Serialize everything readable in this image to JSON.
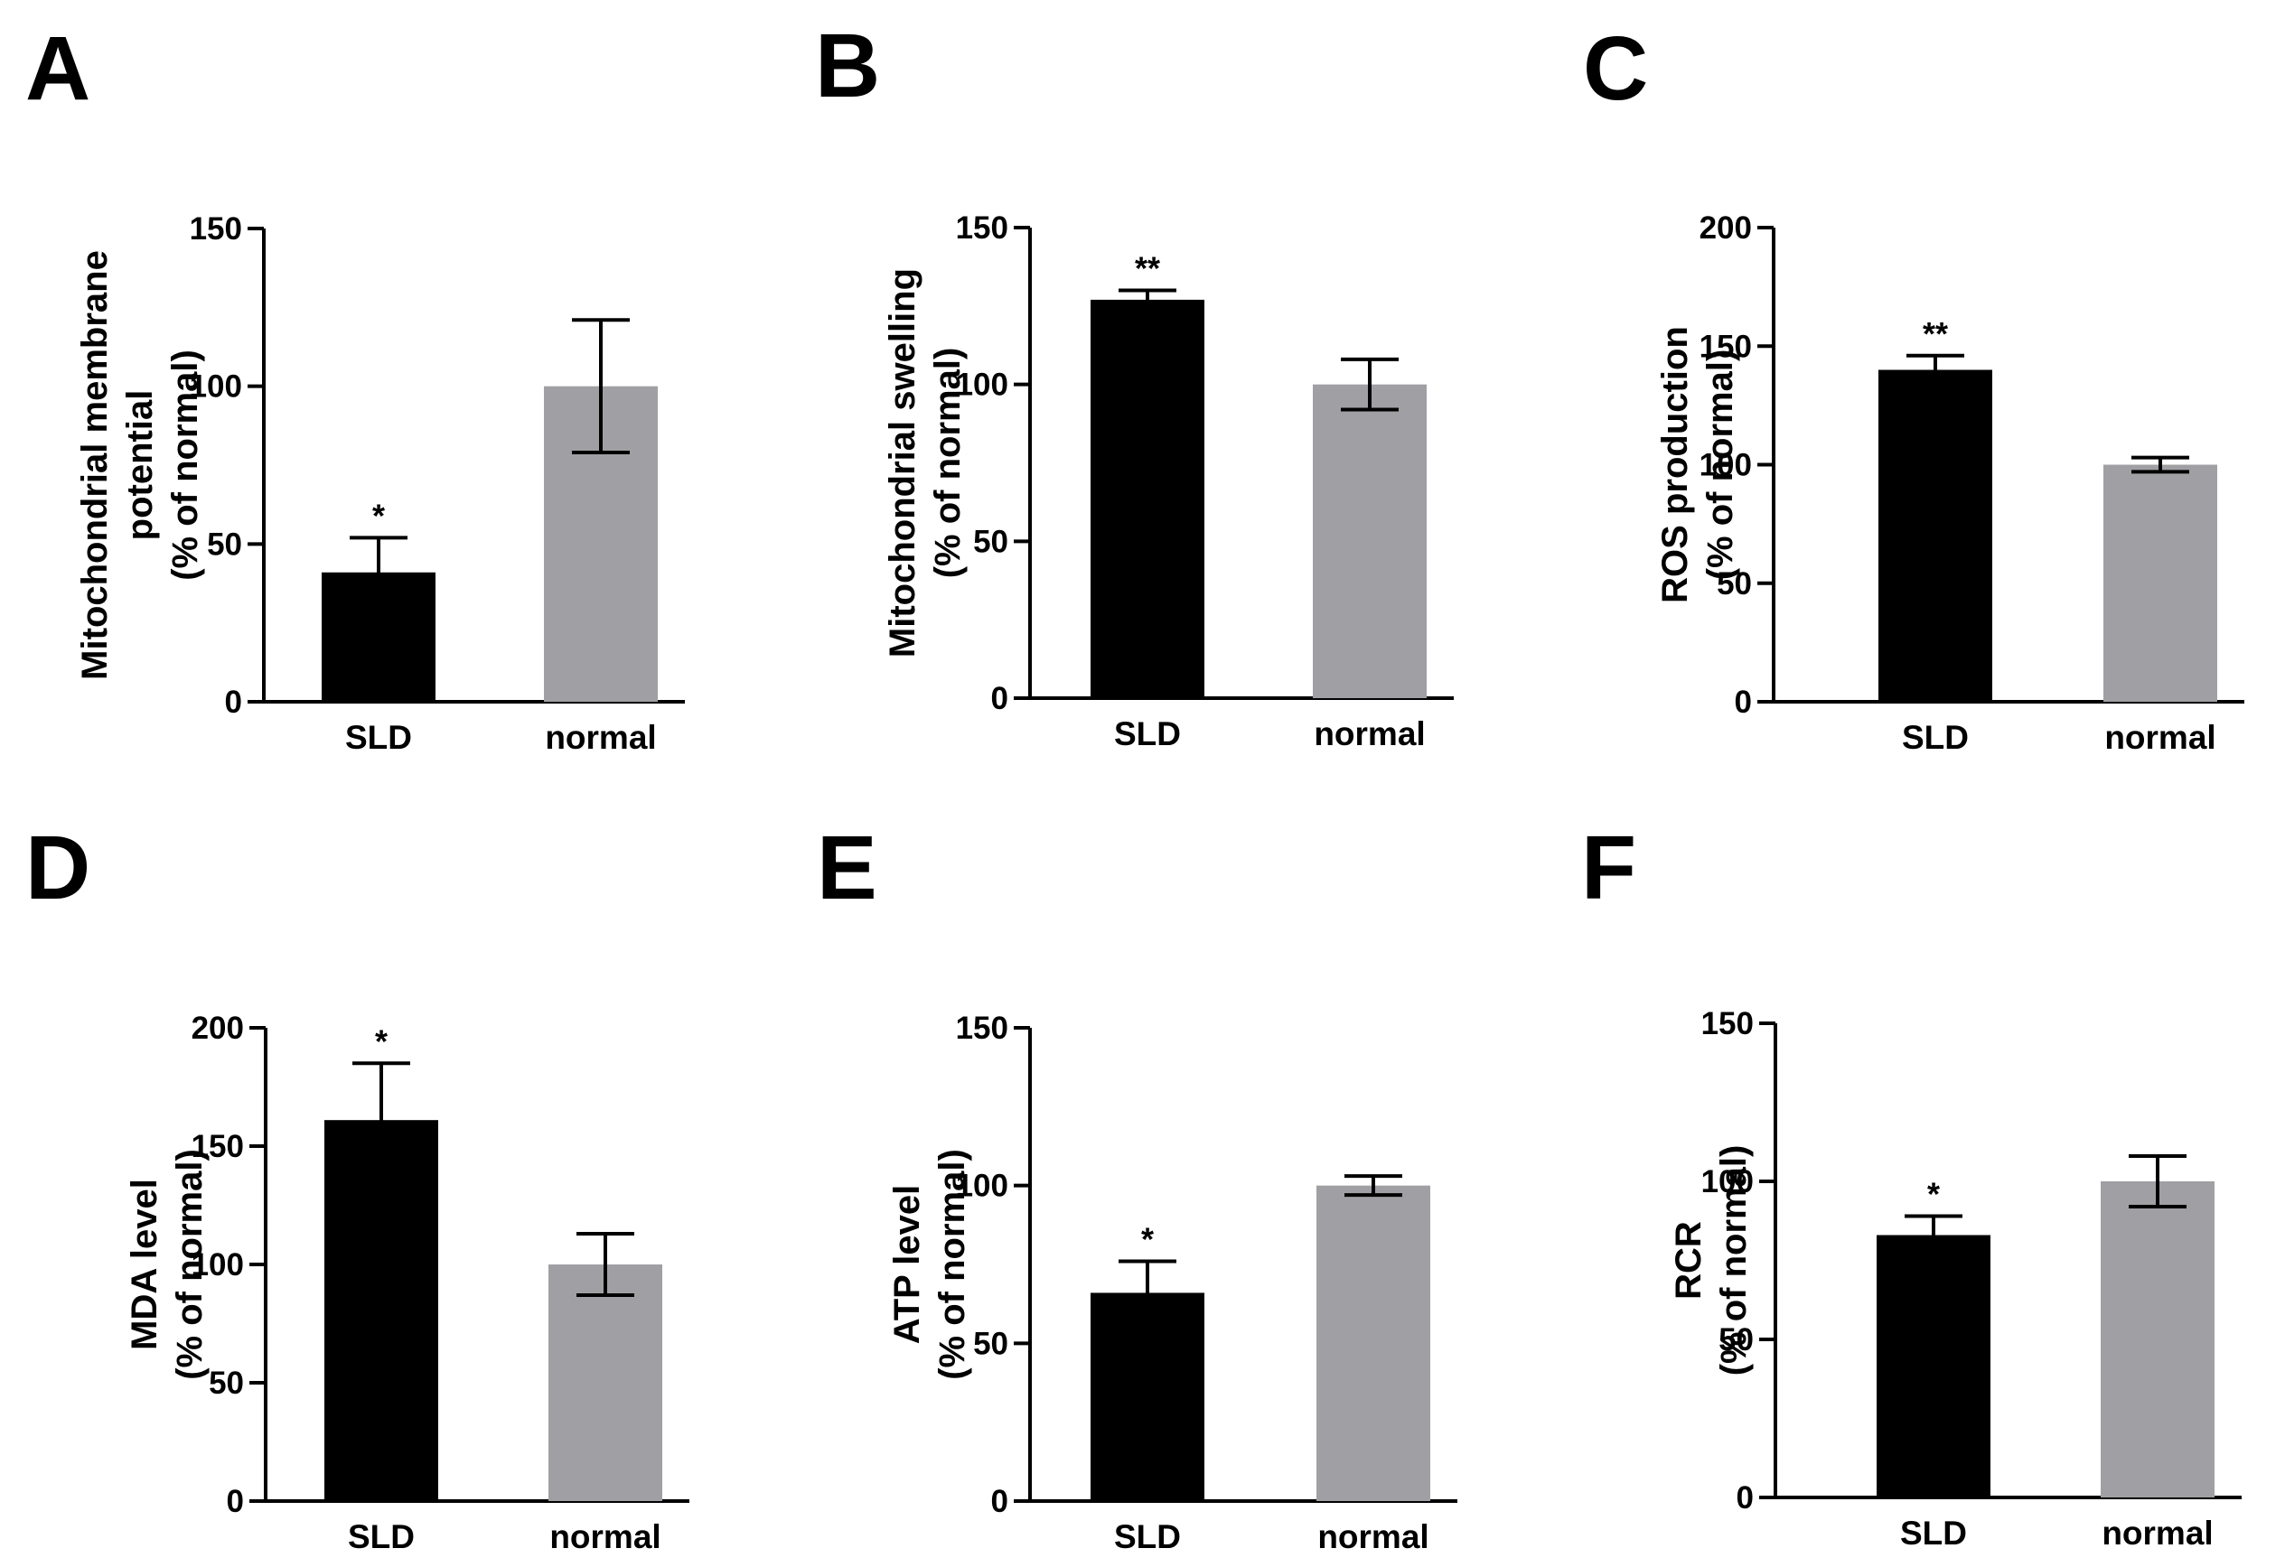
{
  "figure": {
    "colors": {
      "SLD": "#000000",
      "normal": "#a0a0a4",
      "axis": "#000000"
    }
  },
  "chart_data": [
    {
      "panel": "A",
      "type": "bar",
      "categories": [
        "SLD",
        "normal"
      ],
      "values": [
        41,
        100
      ],
      "errors": [
        11,
        21
      ],
      "significance": [
        "*",
        ""
      ],
      "ylabel_lines": [
        "Mitochondrial membrane",
        "potential",
        "(% of normal)"
      ],
      "ylim": [
        0,
        150
      ],
      "yticks": [
        0,
        50,
        100,
        150
      ],
      "ytick_labels": [
        "0",
        "50",
        "100",
        "150"
      ]
    },
    {
      "panel": "B",
      "type": "bar",
      "categories": [
        "SLD",
        "normal"
      ],
      "values": [
        127,
        100
      ],
      "errors": [
        3,
        8
      ],
      "significance": [
        "**",
        ""
      ],
      "ylabel_lines": [
        "Mitochondrial swelling",
        "(% of normal)"
      ],
      "ylim": [
        0,
        150
      ],
      "yticks": [
        0,
        50,
        100,
        150
      ],
      "ytick_labels": [
        "0",
        "50",
        "100",
        "150"
      ]
    },
    {
      "panel": "C",
      "type": "bar",
      "categories": [
        "SLD",
        "normal"
      ],
      "values": [
        140,
        100
      ],
      "errors": [
        6,
        3
      ],
      "significance": [
        "**",
        ""
      ],
      "ylabel_lines": [
        "ROS production",
        "(% of normal)"
      ],
      "ylim": [
        0,
        200
      ],
      "yticks": [
        0,
        50,
        100,
        150,
        200
      ],
      "ytick_labels": [
        "0",
        "50",
        "100",
        "150",
        "200"
      ]
    },
    {
      "panel": "D",
      "type": "bar",
      "categories": [
        "SLD",
        "normal"
      ],
      "values": [
        161,
        100
      ],
      "errors": [
        24,
        13
      ],
      "significance": [
        "*",
        ""
      ],
      "ylabel_lines": [
        "MDA level",
        "(% of normal)"
      ],
      "ylim": [
        0,
        200
      ],
      "yticks": [
        0,
        50,
        100,
        150,
        200
      ],
      "ytick_labels": [
        "0",
        "50",
        "100",
        "150",
        "200"
      ]
    },
    {
      "panel": "E",
      "type": "bar",
      "categories": [
        "SLD",
        "normal"
      ],
      "values": [
        66,
        100
      ],
      "errors": [
        10,
        3
      ],
      "significance": [
        "*",
        ""
      ],
      "ylabel_lines": [
        "ATP level",
        "(% of normal)"
      ],
      "ylim": [
        0,
        150
      ],
      "yticks": [
        0,
        50,
        100,
        150
      ],
      "ytick_labels": [
        "0",
        "50",
        "100",
        "150"
      ]
    },
    {
      "panel": "F",
      "type": "bar",
      "categories": [
        "SLD",
        "normal"
      ],
      "values": [
        83,
        100
      ],
      "errors": [
        6,
        8
      ],
      "significance": [
        "*",
        ""
      ],
      "ylabel_lines": [
        "RCR",
        "(% of normal)"
      ],
      "ylim": [
        0,
        150
      ],
      "yticks": [
        0,
        50,
        100,
        150
      ],
      "ytick_labels": [
        "0",
        "50",
        "100",
        "150"
      ]
    }
  ]
}
